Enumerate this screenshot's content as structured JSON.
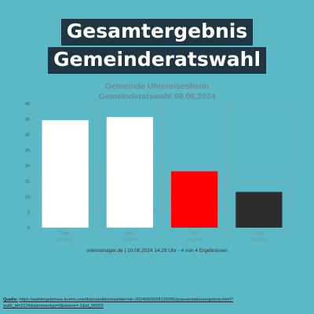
{
  "headline": {
    "line1": "Gesamtergebnis",
    "line2": "Gemeinderatswahl"
  },
  "chart_data": {
    "type": "bar",
    "title": "Gemeinde Untereisesheim",
    "subtitle": "Gemeinderatswahl 09.06.2024",
    "categories": [
      "FWV",
      "CDU",
      "SPD",
      "CDU"
    ],
    "values": [
      34.69,
      35.69,
      18.15,
      11.52
    ],
    "value_labels": [
      "34,69 %",
      "35,69 %",
      "18,15 %",
      "11,52 %"
    ],
    "colors": [
      "#ffffff",
      "#ffffff",
      "#ff0000",
      "#2d2d2d"
    ],
    "ylim": [
      0,
      40
    ],
    "yticks": [
      0,
      5,
      10,
      15,
      20,
      25,
      30,
      35,
      40
    ],
    "grid": true,
    "footer": "votemanager.de | 10.06.2024 14:29 Uhr - 4 von 4 Ergebnissen"
  },
  "source": {
    "label": "Quelle:",
    "url": "https://wahlergebnisse.komm.one/lb/produktion/wahltermin-20240609/08125090/praesentation/ergebnis.html?wahl_id=2124&stimmentyp=0&ebene=-1&id_00003"
  }
}
